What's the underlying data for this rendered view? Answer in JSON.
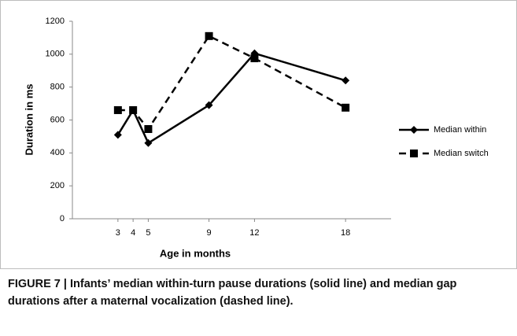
{
  "chart_data": {
    "type": "line",
    "x": [
      3,
      4,
      5,
      9,
      12,
      18
    ],
    "xlim": [
      0,
      21
    ],
    "xticks": [
      3,
      4,
      5,
      9,
      12,
      18
    ],
    "ylim": [
      0,
      1200
    ],
    "yticks": [
      0,
      200,
      400,
      600,
      800,
      1000,
      1200
    ],
    "x_label": "Age in months",
    "y_label": "Duration in ms",
    "legend": "right",
    "series": [
      {
        "name": "Median within",
        "color": "#000000",
        "style": "solid",
        "marker": "diamond",
        "values": [
          510,
          660,
          460,
          690,
          1005,
          840
        ]
      },
      {
        "name": "Median switch",
        "color": "#000000",
        "style": "dashed",
        "marker": "square",
        "values": [
          660,
          660,
          545,
          1110,
          975,
          675
        ]
      }
    ]
  },
  "caption": "FIGURE 7 | Infants’ median within-turn pause durations (solid line) and median gap durations after a maternal vocalization (dashed line)."
}
